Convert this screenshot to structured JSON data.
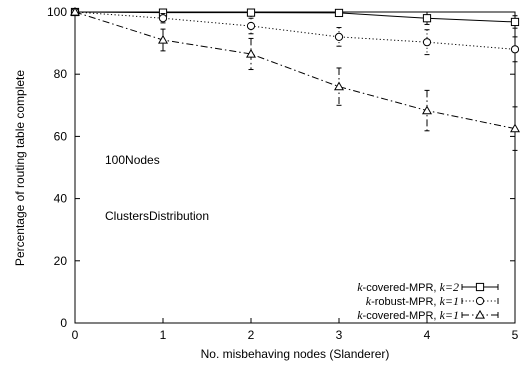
{
  "chart_data": {
    "type": "line",
    "xlabel": "No. misbehaving nodes (Slanderer)",
    "ylabel": "Percentage of routing table complete",
    "xlim": [
      0,
      5
    ],
    "ylim": [
      0,
      100
    ],
    "xticks": [
      0,
      1,
      2,
      3,
      4,
      5
    ],
    "yticks": [
      0,
      20,
      40,
      60,
      80,
      100
    ],
    "grid": false,
    "legend_position": "bottom-right",
    "annotations": [
      "100Nodes",
      "ClustersDistribution"
    ],
    "x": [
      0,
      1,
      2,
      3,
      4,
      5
    ],
    "series": [
      {
        "name": "k-covered-MPR, k=2",
        "name_prefix": "k",
        "name_middle": "-covered-MPR, ",
        "name_suffix": "k=2",
        "marker": "square",
        "line_style": "solid",
        "values": [
          100,
          99.8,
          99.8,
          99.7,
          98,
          96.8
        ],
        "error": [
          0,
          0.5,
          0.5,
          0.5,
          2,
          2
        ]
      },
      {
        "name": "k-robust-MPR, k=1",
        "name_prefix": "k",
        "name_middle": "-robust-MPR, ",
        "name_suffix": "k=1",
        "marker": "circle",
        "line_style": "dotted",
        "values": [
          100,
          98,
          95.5,
          92,
          90.3,
          88
        ],
        "error": [
          0,
          1.5,
          2.5,
          3,
          4,
          4
        ]
      },
      {
        "name": "k-covered-MPR, k=1",
        "name_prefix": "k",
        "name_middle": "-covered-MPR, ",
        "name_suffix": "k=1",
        "marker": "triangle",
        "line_style": "dashdot",
        "values": [
          100,
          91,
          86.5,
          76,
          68.3,
          62.5
        ],
        "error": [
          0,
          3.5,
          5,
          6,
          6.5,
          7
        ]
      }
    ]
  }
}
